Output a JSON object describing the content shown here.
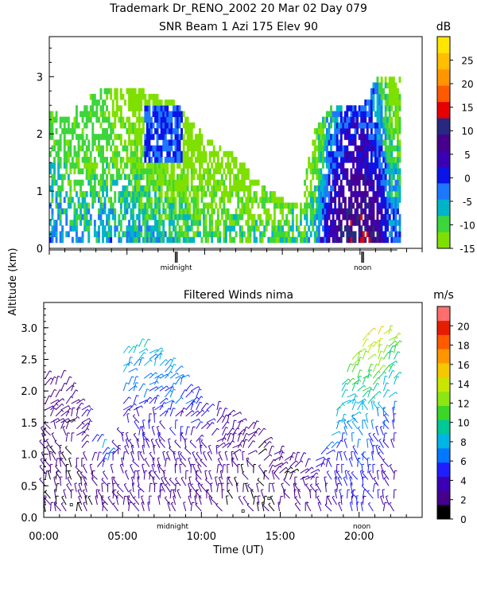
{
  "figure": {
    "title_line1": "Trademark Dr_RENO_2002  20 Mar 02 Day 079",
    "shared_ylabel": "Altitude (km)"
  },
  "chart_data": [
    {
      "type": "heatmap",
      "title": "SNR Beam 1 Azi 175 Elev 90",
      "ylabel": "Altitude (km)",
      "xlim": [
        0,
        24
      ],
      "ylim": [
        0,
        3.7
      ],
      "yticks": [
        "0",
        "1",
        "2",
        "3"
      ],
      "ytick_values": [
        0,
        1,
        2,
        3
      ],
      "axis_markers": [
        {
          "label": "midnight",
          "x": 8.17
        },
        {
          "label": "noon",
          "x": 20.17
        }
      ],
      "colorbar": {
        "unit": "dB",
        "ticks": [
          "-15",
          "-10",
          "-5",
          "0",
          "5",
          "10",
          "15",
          "20",
          "25"
        ],
        "tick_values": [
          -15,
          -10,
          -5,
          0,
          5,
          10,
          15,
          20,
          25
        ],
        "range": [
          -15,
          30
        ],
        "colors": [
          "#7fe000",
          "#3cd63c",
          "#00b4c8",
          "#1e78ff",
          "#0a14e6",
          "#3c00b4",
          "#46008c",
          "#282880",
          "#e60000",
          "#ff5a00",
          "#ff9600",
          "#ffbe00",
          "#ffe600"
        ]
      },
      "sampling": {
        "dx_hours": 0.13,
        "dy_km": 0.1,
        "alt_start_km": 0.1,
        "time_start_h": 0,
        "time_end_h": 22.5
      },
      "echo_top_profile": {
        "x": [
          0,
          1,
          2,
          3,
          4,
          5,
          6,
          7,
          8,
          9,
          10,
          11,
          12,
          13,
          14,
          15,
          16,
          17,
          18,
          19,
          20,
          21,
          22,
          22.5
        ],
        "top_km": [
          2.4,
          2.2,
          2.5,
          2.7,
          2.8,
          2.8,
          2.7,
          2.6,
          2.5,
          2.2,
          1.9,
          1.7,
          1.6,
          1.2,
          1.0,
          0.8,
          0.7,
          2.0,
          2.4,
          2.5,
          2.4,
          2.9,
          3.0,
          3.0
        ]
      },
      "snr_profile": {
        "x": [
          0,
          2,
          4,
          6,
          8,
          10,
          12,
          14,
          16,
          17,
          18,
          19,
          20,
          21,
          22
        ],
        "near_ground_db": [
          -2,
          -6,
          -4,
          -6,
          -8,
          -9,
          -10,
          -10,
          -9,
          -6,
          5,
          10,
          12,
          8,
          -2
        ]
      }
    },
    {
      "type": "scatter",
      "title": "Filtered Winds nima",
      "xlabel": "Time (UT)",
      "ylabel": "Altitude (km)",
      "xlim": [
        0,
        24
      ],
      "ylim": [
        0,
        3.4
      ],
      "xticks": [
        "00:00",
        "05:00",
        "10:00",
        "15:00",
        "20:00"
      ],
      "xtick_values": [
        0,
        5,
        10,
        15,
        20
      ],
      "yticks": [
        "0.0",
        "0.5",
        "1.0",
        "1.5",
        "2.0",
        "2.5",
        "3.0"
      ],
      "ytick_values": [
        0,
        0.5,
        1.0,
        1.5,
        2.0,
        2.5,
        3.0
      ],
      "axis_markers": [
        {
          "label": "midnight",
          "x": 8.17
        },
        {
          "label": "noon",
          "x": 20.17
        }
      ],
      "colorbar": {
        "unit": "m/s",
        "ticks": [
          "0",
          "2",
          "4",
          "6",
          "8",
          "10",
          "12",
          "14",
          "16",
          "18",
          "20"
        ],
        "tick_values": [
          0,
          2,
          4,
          6,
          8,
          10,
          12,
          14,
          16,
          18,
          20
        ],
        "range": [
          0,
          22
        ],
        "colors": [
          "#000000",
          "#46008c",
          "#3c00b4",
          "#1e1eff",
          "#0078ff",
          "#00b4e6",
          "#00c896",
          "#3cd628",
          "#8ce614",
          "#c8e600",
          "#f5c800",
          "#ff9600",
          "#ff5a00",
          "#e61e00",
          "#ff6e6e"
        ]
      },
      "barbs": {
        "note": "wind barbs every 0.33 h in time and 0.1 km in altitude",
        "dx_hours": 0.33,
        "dy_km": 0.1,
        "wind_top_profile": {
          "x": [
            0,
            1,
            2,
            3,
            4,
            5,
            6,
            7,
            8,
            9,
            10,
            11,
            12,
            13,
            14,
            15,
            16,
            17,
            18,
            19,
            20,
            21,
            22,
            22.5
          ],
          "top_km": [
            2.5,
            2.3,
            2.0,
            1.5,
            1.0,
            2.6,
            2.8,
            2.7,
            2.5,
            2.1,
            1.9,
            1.7,
            1.6,
            1.5,
            1.2,
            1.0,
            0.9,
            0.9,
            1.2,
            2.2,
            2.8,
            3.0,
            3.0,
            2.8
          ]
        },
        "speed_profile": {
          "x": [
            0,
            2,
            4,
            6,
            8,
            10,
            12,
            14,
            16,
            18,
            19,
            20,
            21,
            22
          ],
          "speed_low_ms": [
            2,
            1.5,
            2,
            3,
            2.5,
            2.5,
            2,
            1.5,
            2,
            3,
            4,
            5,
            4,
            3
          ],
          "speed_high_ms": [
            3,
            2.5,
            8,
            9,
            8,
            5,
            3,
            2,
            2,
            7,
            10,
            14,
            17,
            13
          ]
        }
      }
    }
  ]
}
